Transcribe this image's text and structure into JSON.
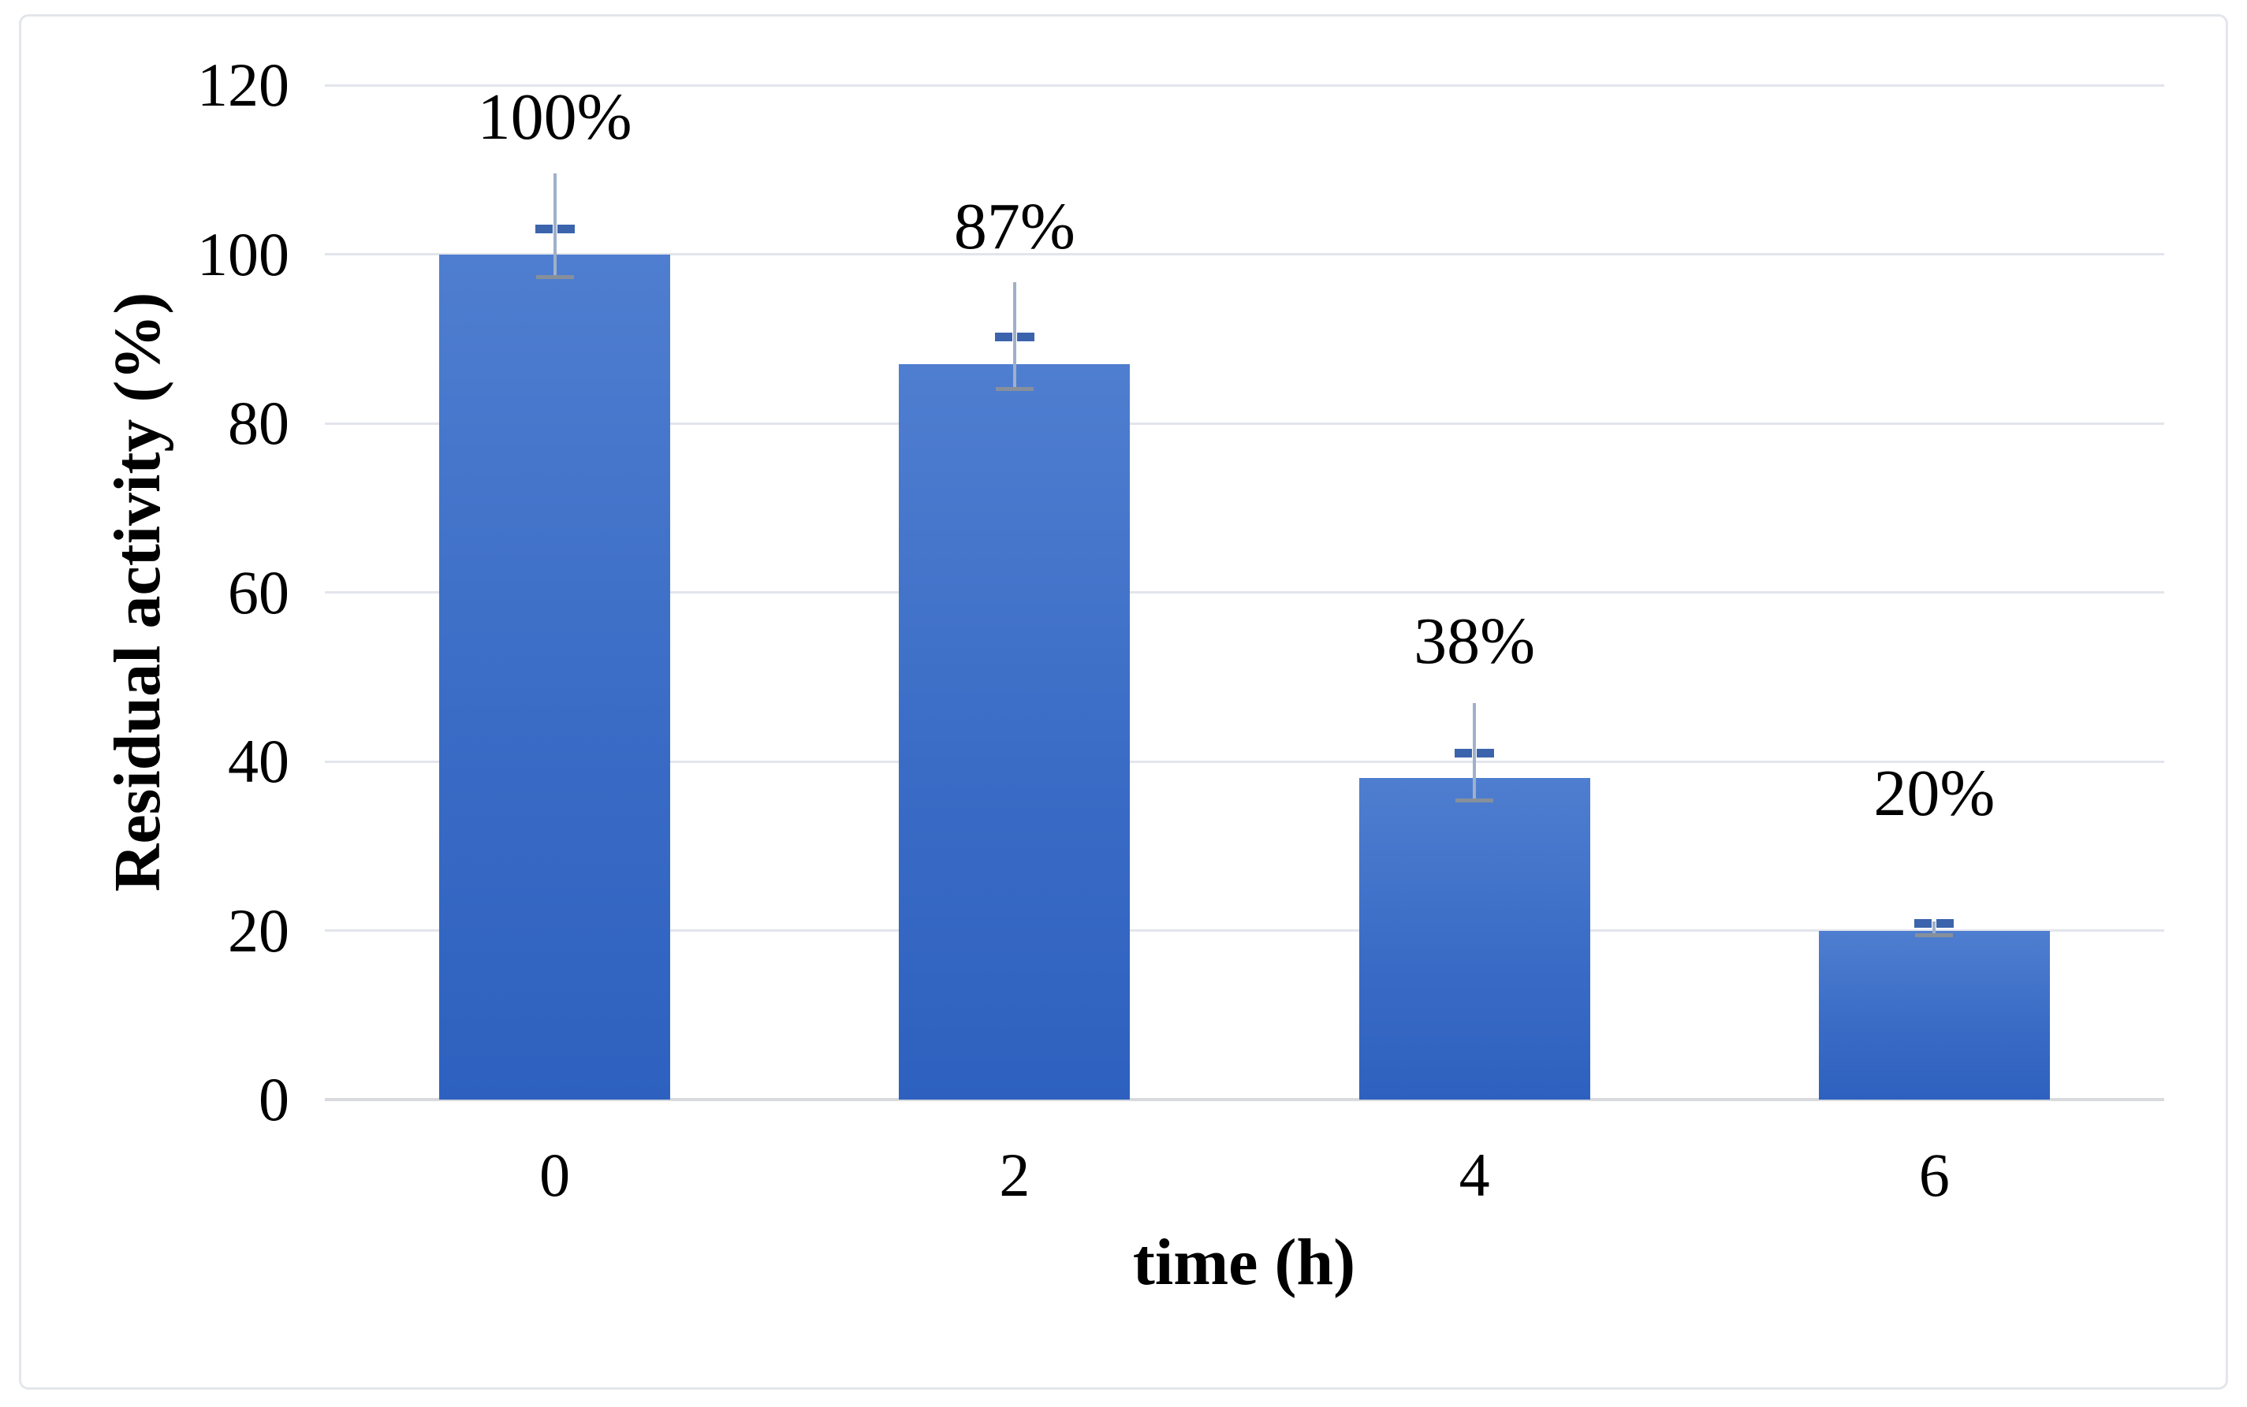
{
  "figure": {
    "background": "#ffffff",
    "border_color": "#e3e6eb"
  },
  "chart_data": {
    "type": "bar",
    "title": "",
    "xlabel": "time (h)",
    "ylabel": "Residual activity (%)",
    "categories": [
      "0",
      "2",
      "4",
      "6"
    ],
    "values": [
      100,
      87,
      38,
      20
    ],
    "data_labels": [
      "100%",
      "87%",
      "38%",
      "20%"
    ],
    "series": [
      {
        "name": "Residual activity",
        "values": [
          100,
          87,
          38,
          20
        ],
        "error_bars": [
          {
            "whisker_up": 9.6,
            "dash_up": 3.0,
            "cap_down": 2.7
          },
          {
            "whisker_up": 9.7,
            "dash_up": 3.3,
            "cap_down": 2.9
          },
          {
            "whisker_up": 8.9,
            "dash_up": 3.0,
            "cap_down": 2.6
          },
          {
            "whisker_up": 1.1,
            "dash_up": 0.9,
            "cap_down": 0.5
          }
        ]
      }
    ],
    "ylim": [
      0,
      120
    ],
    "yticks": [
      "0",
      "20",
      "40",
      "60",
      "80",
      "100",
      "120"
    ],
    "ytick_step": 20,
    "grid": "horizontal-gridlines-on",
    "legend": "none",
    "colors": {
      "bar_gradient_top": "#4f7ed0",
      "bar_gradient_bottom": "#2e61bf",
      "gridline": "#e2e5ec",
      "axis_line": "#d8dade",
      "error_whisker": "#9fb0c9",
      "error_cap": "#878f9a",
      "error_dash": "#3c64ad",
      "text": "#000000"
    }
  }
}
